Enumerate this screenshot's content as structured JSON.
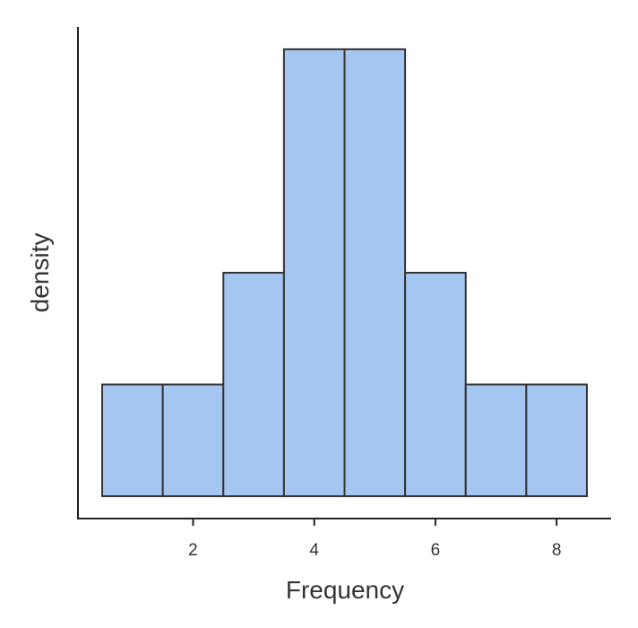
{
  "chart_data": {
    "type": "bar",
    "xlabel": "Frequency",
    "ylabel": "density",
    "bin_width": 1,
    "x": [
      1,
      2,
      3,
      4,
      5,
      6,
      7,
      8
    ],
    "values": [
      1,
      1,
      2,
      4,
      4,
      2,
      1,
      1
    ],
    "xlim": [
      0.1,
      8.9
    ],
    "ylim": [
      -0.2,
      4.2
    ],
    "x_ticks": [
      2,
      4,
      6,
      8
    ],
    "y_ticks": [],
    "bar_color": "#a6c6f2",
    "edge_color": "#333333",
    "grid": false,
    "legend": "none"
  }
}
